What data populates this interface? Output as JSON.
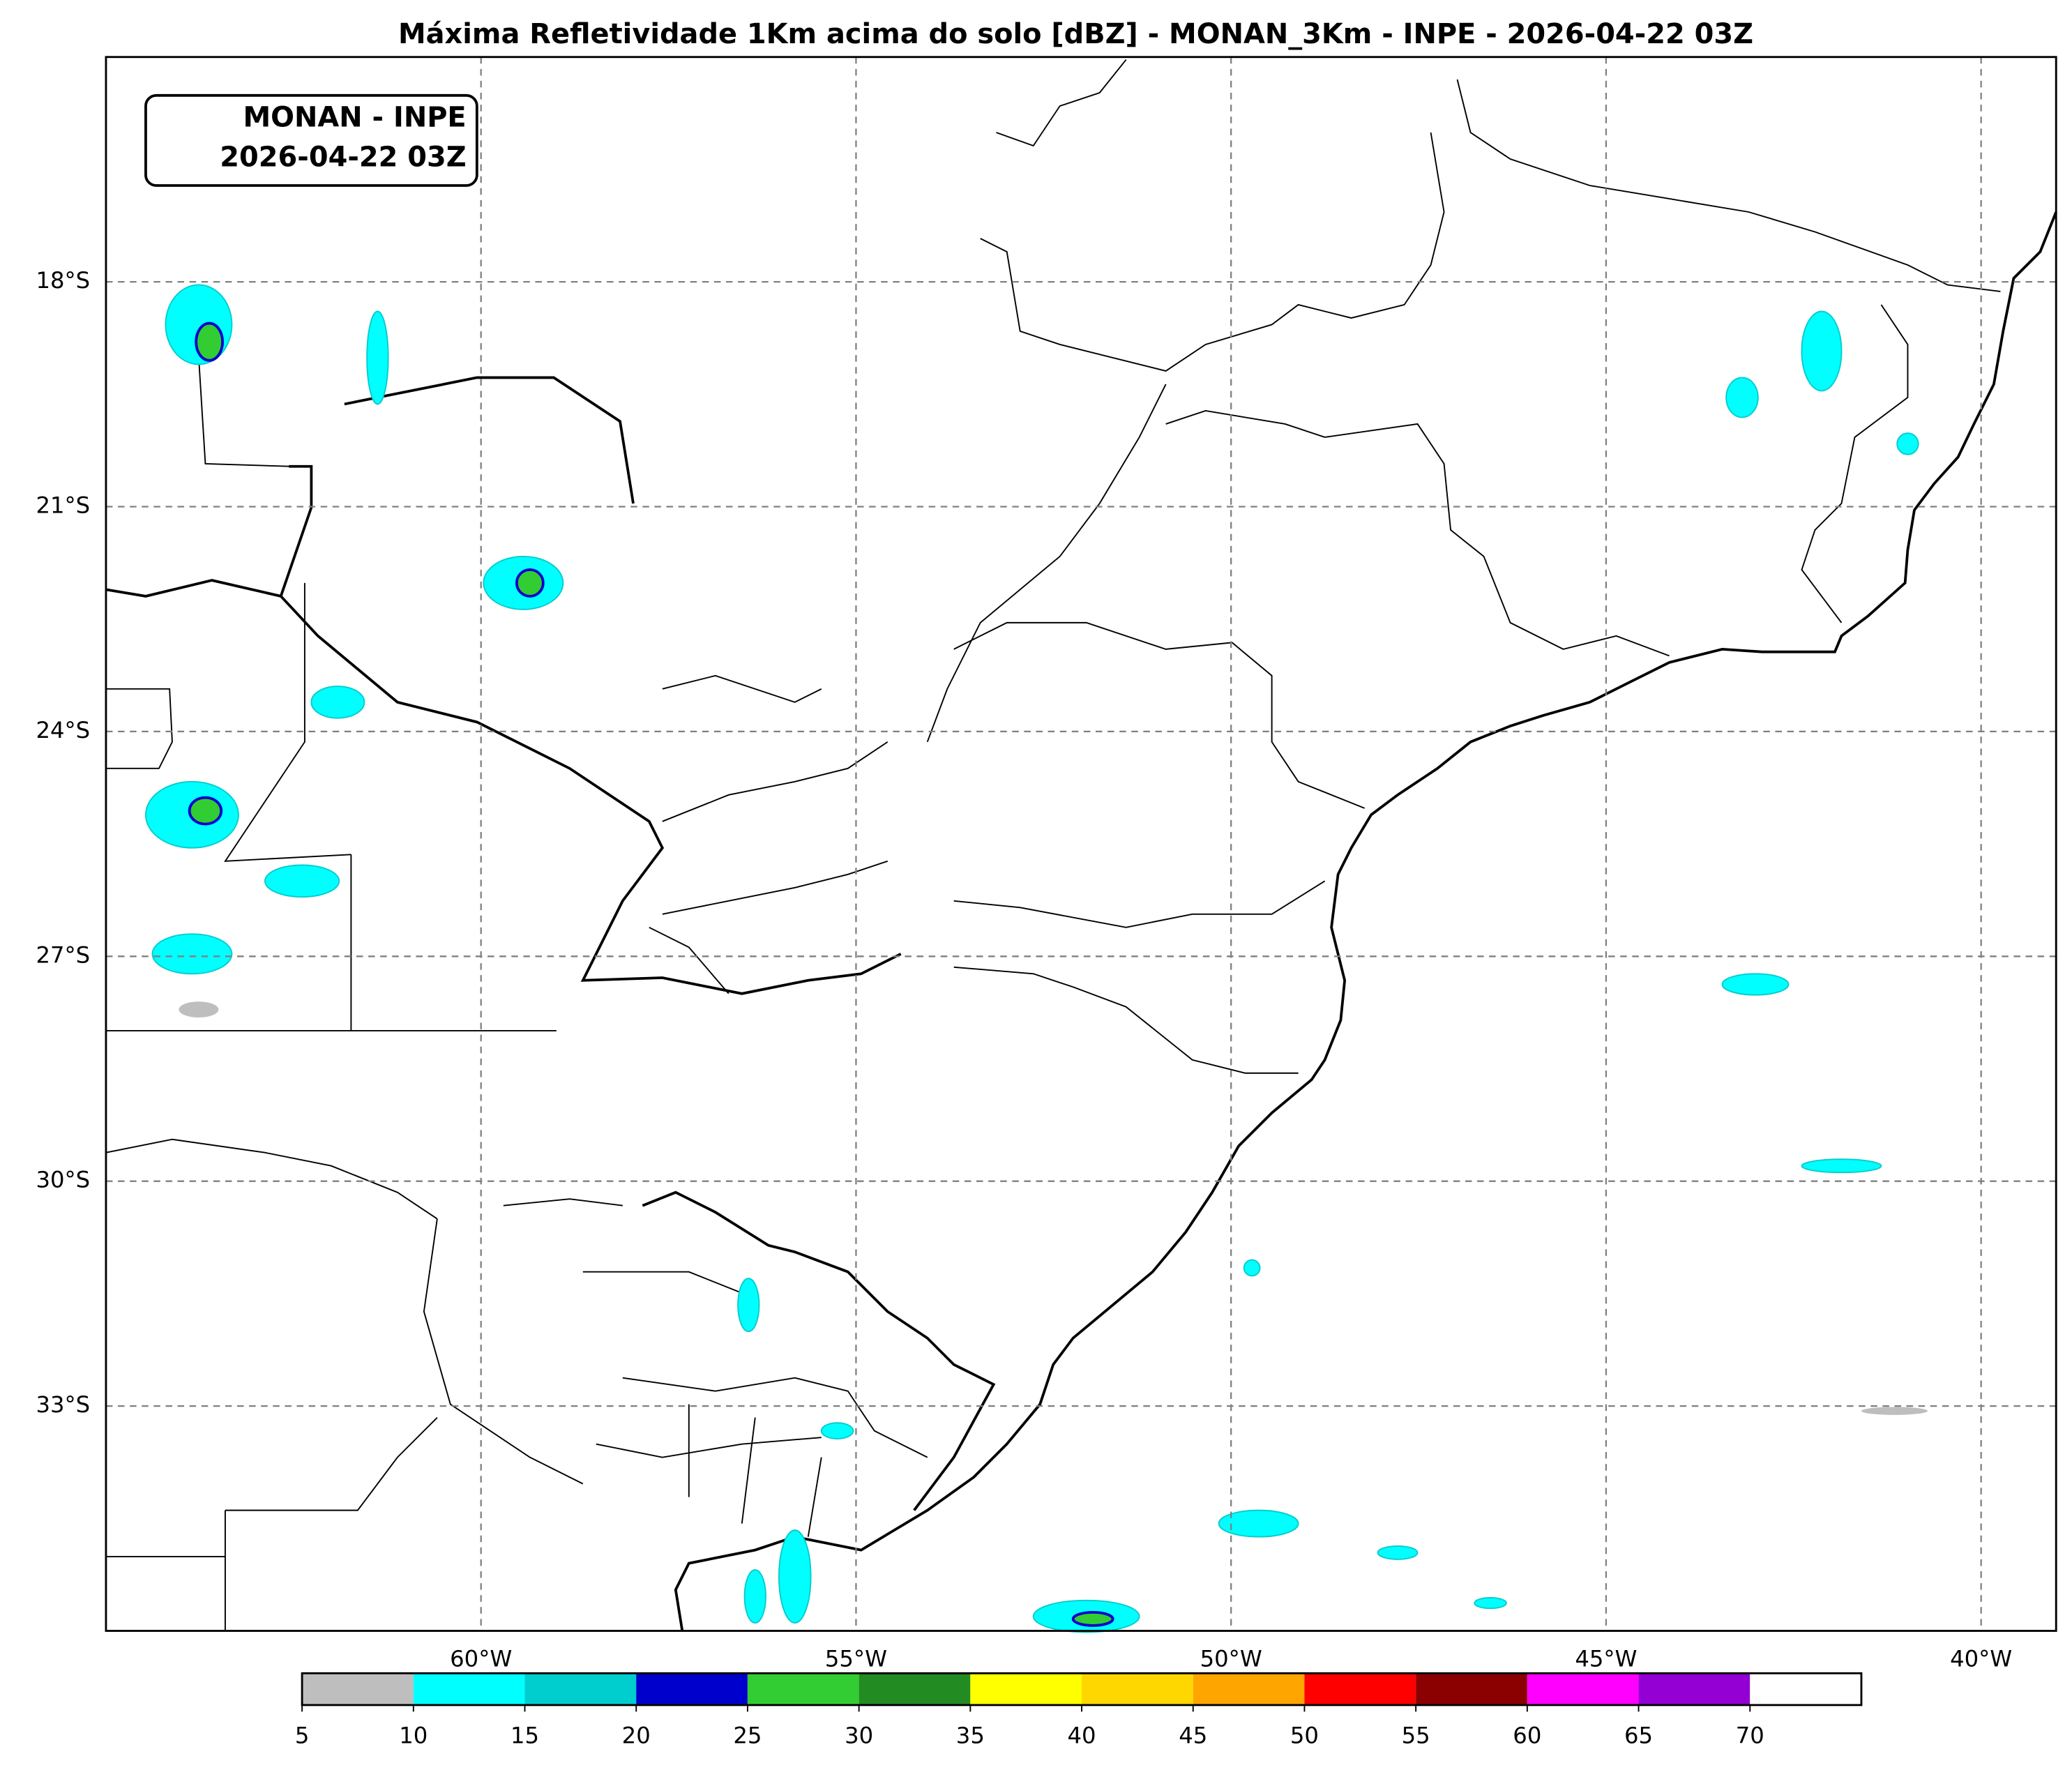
{
  "map": {
    "title": "Máxima Refletividade 1Km acima do solo [dBZ] - MONAN_3Km - INPE - 2026-04-22 03Z",
    "stamp": [
      "MONAN - INPE",
      "2026-04-22 03Z"
    ],
    "lon_range": [
      -65,
      -39
    ],
    "lat_range": [
      -15,
      -36
    ],
    "lon_ticks": [
      {
        "value": -60,
        "label": "60°W"
      },
      {
        "value": -55,
        "label": "55°W"
      },
      {
        "value": -50,
        "label": "50°W"
      },
      {
        "value": -45,
        "label": "45°W"
      },
      {
        "value": -40,
        "label": "40°W"
      }
    ],
    "lat_ticks": [
      {
        "value": -18,
        "label": "18°S"
      },
      {
        "value": -21,
        "label": "21°S"
      },
      {
        "value": -24,
        "label": "24°S"
      },
      {
        "value": -27,
        "label": "27°S"
      },
      {
        "value": -30,
        "label": "30°S"
      },
      {
        "value": -33,
        "label": "33°S"
      }
    ],
    "grid": true,
    "colorbar": {
      "range": [
        5,
        75
      ],
      "ticks": [
        5,
        10,
        15,
        20,
        25,
        30,
        35,
        40,
        45,
        50,
        55,
        60,
        65,
        70
      ],
      "colors": [
        "#bebebe",
        "#00ffff",
        "#00cdcd",
        "#0000cd",
        "#32cd32",
        "#228b22",
        "#ffff00",
        "#ffd700",
        "#ffa500",
        "#ff0000",
        "#8b0000",
        "#ff00ff",
        "#9400d3",
        "#ffffff"
      ]
    }
  }
}
